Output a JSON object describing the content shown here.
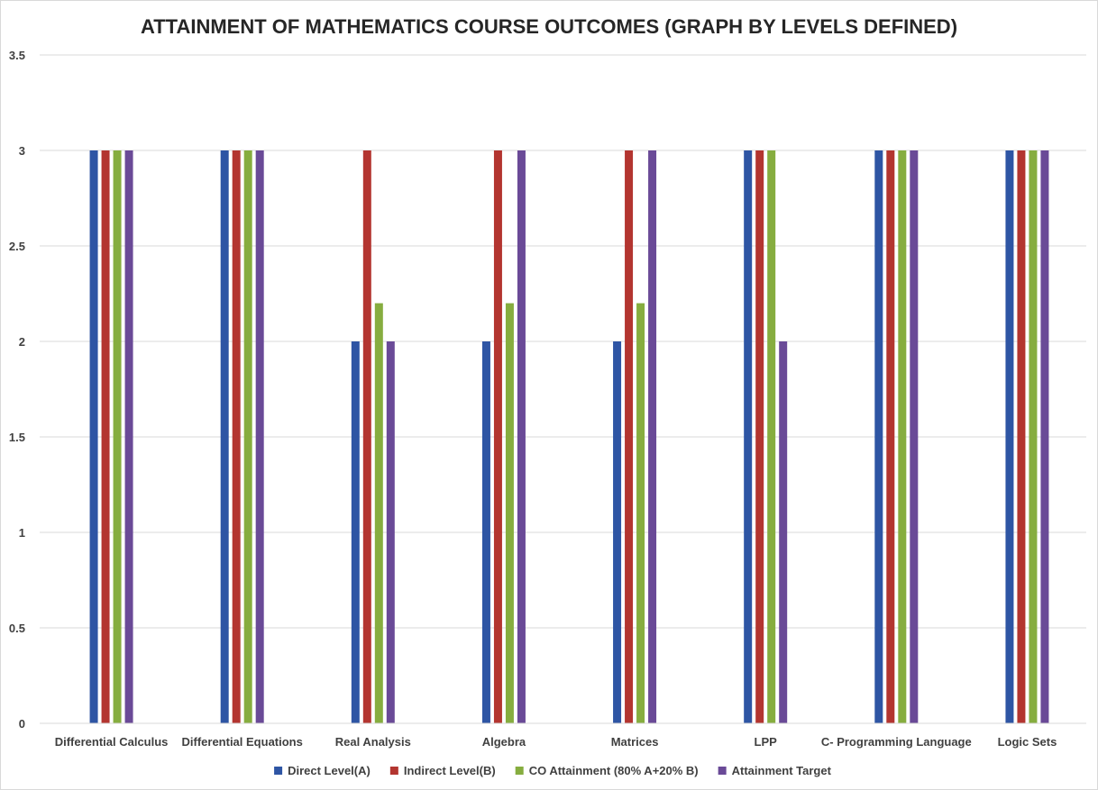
{
  "chart_data": {
    "type": "bar",
    "title": "ATTAINMENT OF MATHEMATICS COURSE OUTCOMES (GRAPH BY LEVELS DEFINED)",
    "xlabel": "",
    "ylabel": "",
    "ylim": [
      0,
      3.5
    ],
    "yticks": [
      0,
      0.5,
      1,
      1.5,
      2,
      2.5,
      3,
      3.5
    ],
    "ytick_labels": [
      "0",
      "0.5",
      "1",
      "1.5",
      "2",
      "2.5",
      "3",
      "3.5"
    ],
    "grid": true,
    "legend_position": "bottom",
    "categories": [
      "Differential Calculus",
      "Differential Equations",
      "Real Analysis",
      "Algebra",
      "Matrices",
      "LPP",
      "C- Programming Language",
      "Logic Sets"
    ],
    "series": [
      {
        "name": "Direct Level(A)",
        "color": "#2e55a4",
        "values": [
          3,
          3,
          2,
          2,
          2,
          3,
          3,
          3
        ]
      },
      {
        "name": "Indirect Level(B)",
        "color": "#b33530",
        "values": [
          3,
          3,
          3,
          3,
          3,
          3,
          3,
          3
        ]
      },
      {
        "name": "CO Attainment (80% A+20% B)",
        "color": "#86ad3f",
        "values": [
          3,
          3,
          2.2,
          2.2,
          2.2,
          3,
          3,
          3
        ]
      },
      {
        "name": "Attainment Target",
        "color": "#6a4a97",
        "values": [
          3,
          3,
          2,
          3,
          3,
          2,
          3,
          3
        ]
      }
    ]
  }
}
